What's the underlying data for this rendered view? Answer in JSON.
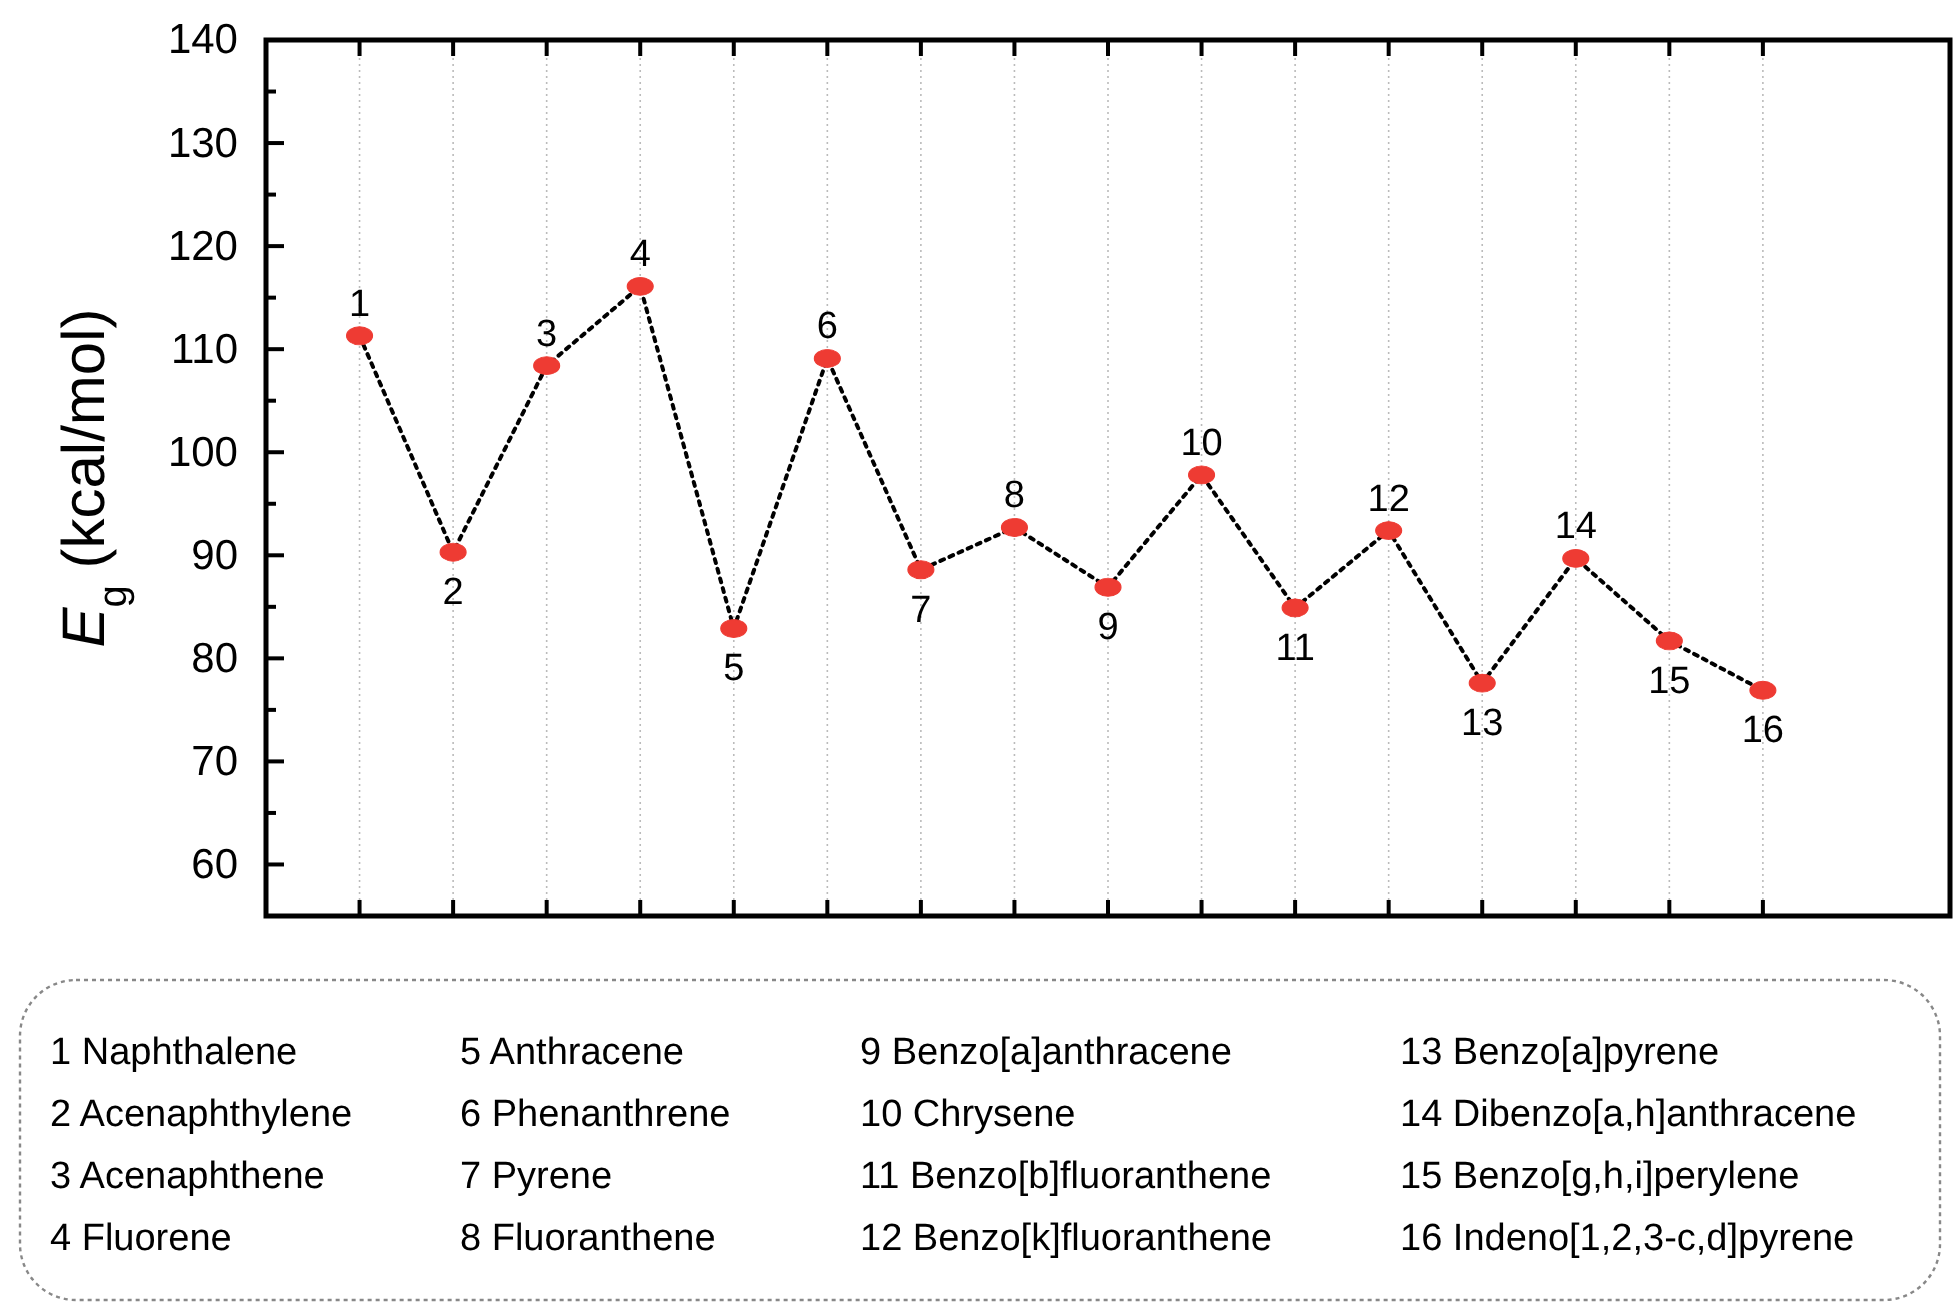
{
  "chart_data": {
    "type": "line",
    "ylabel": "E$_{g}$ (kcal/mol)",
    "categories": [
      "1",
      "2",
      "3",
      "4",
      "5",
      "6",
      "7",
      "8",
      "9",
      "10",
      "11",
      "12",
      "13",
      "14",
      "15",
      "16"
    ],
    "series": [
      {
        "color": "#ee3b33",
        "values": [
          111.3,
          90.3,
          108.4,
          116.1,
          82.9,
          109.1,
          88.6,
          92.7,
          86.9,
          97.8,
          84.9,
          92.4,
          77.6,
          89.7,
          81.7,
          76.9
        ]
      }
    ],
    "ylim": [
      55,
      140
    ],
    "yticks": [
      60,
      70,
      80,
      90,
      100,
      110,
      120,
      130,
      140
    ],
    "grid": "x",
    "marker": "circle",
    "line_style": "dotted",
    "annotations": [
      "1 Naphthalene",
      "2 Acenaphthylene",
      "3 Acenaphthene",
      "4 Fluorene",
      "5 Anthracene",
      "6 Phenanthrene",
      "7 Pyrene",
      "8 Fluoranthene",
      "9 Benzo[a]anthracene",
      "10 Chrysene",
      "11 Benzo[b]fluoranthene",
      "12 Benzo[k]fluoranthene",
      "13 Benzo[a]pyrene",
      "14 Dibenzo[a,h]anthracene",
      "15 Benzo[g,h,i]perylene",
      "16 Indeno[1,2,3-c,d]pyrene"
    ]
  }
}
